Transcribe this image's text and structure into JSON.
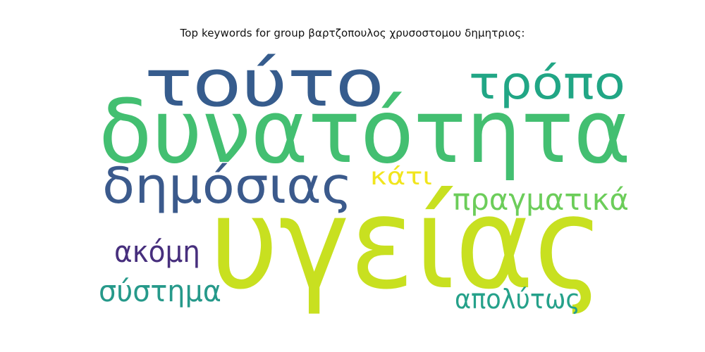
{
  "title": "Top keywords for group βαρτζοπουλος χρυσοστομου δημητριος:",
  "words": [
    {
      "text": "δυνατότητα",
      "color": "#43bf71"
    },
    {
      "text": "υγείας",
      "color": "#c8e020"
    },
    {
      "text": "τούτο",
      "color": "#365c8d"
    },
    {
      "text": "τρόπο",
      "color": "#21a685"
    },
    {
      "text": "δημόσιας",
      "color": "#3b5a8c"
    },
    {
      "text": "κάτι",
      "color": "#f1e51d"
    },
    {
      "text": "πραγματικά",
      "color": "#6ccd5a"
    },
    {
      "text": "ακόμη",
      "color": "#472f7d"
    },
    {
      "text": "σύστημα",
      "color": "#26998a"
    },
    {
      "text": "απολύτως",
      "color": "#25a18a"
    }
  ]
}
